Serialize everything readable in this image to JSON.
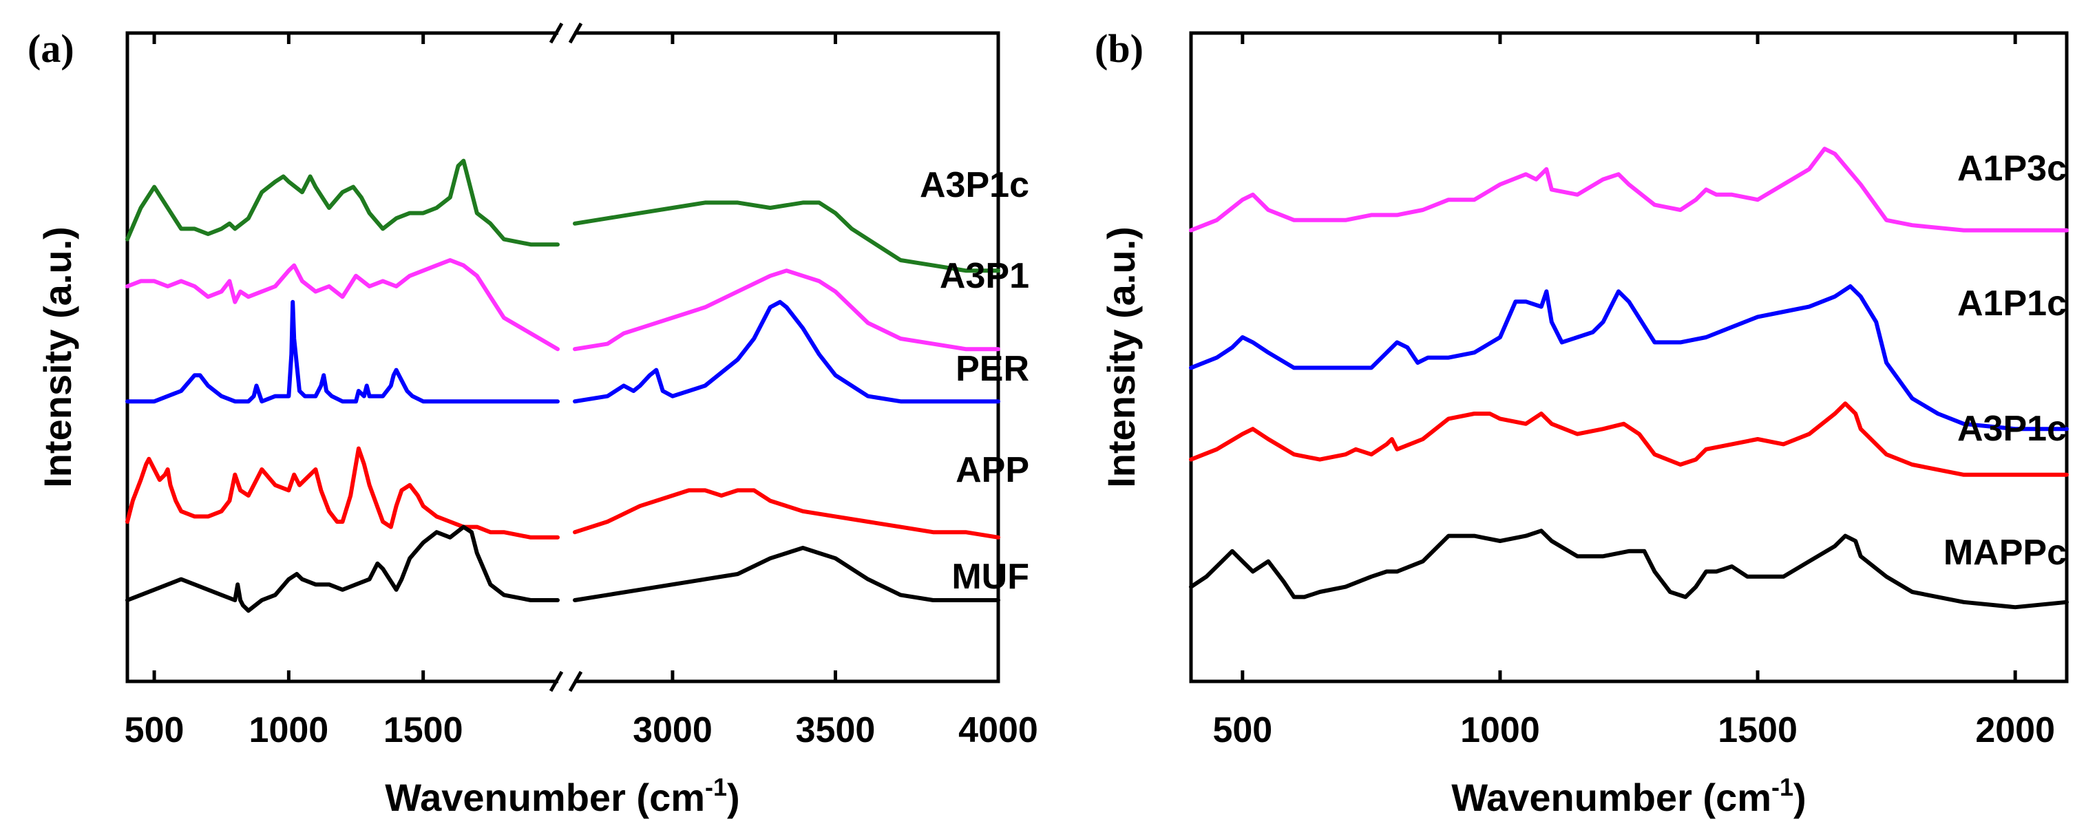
{
  "chart_data": [
    {
      "type": "line",
      "panel": "(a)",
      "xlabel": "Wavenumber (cm",
      "xlabel_sup": "-1",
      "xlabel_end": ")",
      "ylabel": "Intensity (a.u.)",
      "x_break": [
        2000,
        2700
      ],
      "xlim": [
        400,
        4000
      ],
      "xticks": [
        "500",
        "1000",
        "1500",
        "3000",
        "3500",
        "4000"
      ],
      "xtick_values": [
        500,
        1000,
        1500,
        3000,
        3500,
        4000
      ],
      "ylim": [
        0,
        100
      ],
      "series": [
        {
          "name": "A3P1c",
          "color": "#1f7a1f",
          "x": [
            400,
            450,
            500,
            550,
            600,
            650,
            700,
            750,
            780,
            800,
            850,
            900,
            950,
            980,
            1000,
            1050,
            1080,
            1100,
            1150,
            1200,
            1240,
            1270,
            1300,
            1350,
            1400,
            1450,
            1500,
            1550,
            1600,
            1630,
            1650,
            1680,
            1700,
            1750,
            1800,
            1900,
            2000,
            2700,
            2800,
            2900,
            3000,
            3100,
            3200,
            3300,
            3400,
            3450,
            3500,
            3550,
            3600,
            3650,
            3700,
            3800,
            3900,
            4000
          ],
          "y": [
            74,
            80,
            84,
            80,
            76,
            76,
            75,
            76,
            77,
            76,
            78,
            83,
            85,
            86,
            85,
            83,
            86,
            84,
            80,
            83,
            84,
            82,
            79,
            76,
            78,
            79,
            79,
            80,
            82,
            88,
            89,
            83,
            79,
            77,
            74,
            73,
            73,
            77,
            78,
            79,
            80,
            81,
            81,
            80,
            81,
            81,
            79,
            76,
            74,
            72,
            70,
            69,
            68,
            68
          ]
        },
        {
          "name": "A3P1",
          "color": "#ff33ff",
          "x": [
            400,
            450,
            500,
            550,
            600,
            650,
            700,
            750,
            780,
            800,
            820,
            850,
            900,
            950,
            1000,
            1020,
            1050,
            1100,
            1150,
            1200,
            1250,
            1300,
            1350,
            1400,
            1450,
            1500,
            1550,
            1600,
            1650,
            1700,
            1750,
            1800,
            1900,
            2000,
            2700,
            2800,
            2850,
            2900,
            2950,
            3000,
            3100,
            3200,
            3300,
            3350,
            3400,
            3450,
            3500,
            3550,
            3600,
            3700,
            3800,
            3900,
            4000
          ],
          "y": [
            65,
            66,
            66,
            65,
            66,
            65,
            63,
            64,
            66,
            62,
            64,
            63,
            64,
            65,
            68,
            69,
            66,
            64,
            65,
            63,
            67,
            65,
            66,
            65,
            67,
            68,
            69,
            70,
            69,
            67,
            63,
            59,
            56,
            53,
            53,
            54,
            56,
            57,
            58,
            59,
            61,
            64,
            67,
            68,
            67,
            66,
            64,
            61,
            58,
            55,
            54,
            53,
            53
          ]
        },
        {
          "name": "PER",
          "color": "#0000ff",
          "x": [
            400,
            500,
            550,
            600,
            650,
            670,
            700,
            750,
            800,
            850,
            870,
            880,
            900,
            950,
            1000,
            1010,
            1015,
            1020,
            1040,
            1060,
            1100,
            1120,
            1130,
            1140,
            1160,
            1200,
            1250,
            1260,
            1280,
            1290,
            1300,
            1350,
            1380,
            1390,
            1400,
            1410,
            1420,
            1440,
            1460,
            1500,
            1600,
            2000,
            2700,
            2800,
            2850,
            2880,
            2900,
            2930,
            2950,
            2970,
            3000,
            3100,
            3200,
            3250,
            3300,
            3330,
            3350,
            3400,
            3450,
            3500,
            3600,
            3700,
            3800,
            3900,
            4000
          ],
          "y": [
            43,
            43,
            44,
            45,
            48,
            48,
            46,
            44,
            43,
            43,
            44,
            46,
            43,
            44,
            44,
            52,
            62,
            55,
            45,
            44,
            44,
            46,
            48,
            45,
            44,
            43,
            43,
            45,
            44,
            46,
            44,
            44,
            46,
            48,
            49,
            48,
            47,
            45,
            44,
            43,
            43,
            43,
            43,
            44,
            46,
            45,
            46,
            48,
            49,
            45,
            44,
            46,
            51,
            55,
            61,
            62,
            61,
            57,
            52,
            48,
            44,
            43,
            43,
            43,
            43
          ]
        },
        {
          "name": "APP",
          "color": "#ff0000",
          "x": [
            400,
            420,
            450,
            470,
            480,
            500,
            520,
            540,
            550,
            560,
            580,
            600,
            650,
            700,
            750,
            780,
            800,
            820,
            850,
            880,
            900,
            950,
            1000,
            1020,
            1040,
            1060,
            1100,
            1120,
            1150,
            1180,
            1200,
            1230,
            1250,
            1260,
            1280,
            1300,
            1350,
            1380,
            1400,
            1420,
            1450,
            1480,
            1500,
            1550,
            1600,
            1650,
            1700,
            1750,
            1800,
            1900,
            2000,
            2700,
            2800,
            2900,
            3000,
            3050,
            3100,
            3150,
            3200,
            3250,
            3300,
            3400,
            3500,
            3600,
            3700,
            3800,
            3900,
            4000
          ],
          "y": [
            20,
            24,
            28,
            31,
            32,
            30,
            28,
            29,
            30,
            27,
            24,
            22,
            21,
            21,
            22,
            24,
            29,
            26,
            25,
            28,
            30,
            27,
            26,
            29,
            27,
            28,
            30,
            26,
            22,
            20,
            20,
            25,
            31,
            34,
            31,
            27,
            20,
            19,
            23,
            26,
            27,
            25,
            23,
            21,
            20,
            19,
            19,
            18,
            18,
            17,
            17,
            18,
            20,
            23,
            25,
            26,
            26,
            25,
            26,
            26,
            24,
            22,
            21,
            20,
            19,
            18,
            18,
            17
          ]
        },
        {
          "name": "MUF",
          "color": "#000000",
          "x": [
            400,
            450,
            500,
            550,
            600,
            650,
            700,
            750,
            800,
            810,
            820,
            830,
            850,
            900,
            950,
            1000,
            1030,
            1050,
            1100,
            1150,
            1200,
            1250,
            1300,
            1330,
            1350,
            1400,
            1420,
            1450,
            1500,
            1550,
            1600,
            1650,
            1680,
            1700,
            1750,
            1800,
            1900,
            2000,
            2700,
            2800,
            2900,
            3000,
            3100,
            3200,
            3300,
            3350,
            3400,
            3450,
            3500,
            3550,
            3600,
            3700,
            3800,
            3900,
            4000
          ],
          "y": [
            5,
            6,
            7,
            8,
            9,
            8,
            7,
            6,
            5,
            8,
            5,
            4,
            3,
            5,
            6,
            9,
            10,
            9,
            8,
            8,
            7,
            8,
            9,
            12,
            11,
            7,
            9,
            13,
            16,
            18,
            17,
            19,
            18,
            14,
            8,
            6,
            5,
            5,
            5,
            6,
            7,
            8,
            9,
            10,
            13,
            14,
            15,
            14,
            13,
            11,
            9,
            6,
            5,
            5,
            5
          ]
        }
      ]
    },
    {
      "type": "line",
      "panel": "(b)",
      "xlabel": "Wavenumber (cm",
      "xlabel_sup": "-1",
      "xlabel_end": ")",
      "ylabel": "Intensity (a.u.)",
      "xlim": [
        400,
        2100
      ],
      "xticks": [
        "500",
        "1000",
        "1500",
        "2000"
      ],
      "xtick_values": [
        500,
        1000,
        1500,
        2000
      ],
      "ylim": [
        0,
        100
      ],
      "series": [
        {
          "name": "A1P3c",
          "color": "#ff33ff",
          "x": [
            400,
            450,
            500,
            520,
            550,
            600,
            650,
            700,
            750,
            800,
            850,
            900,
            950,
            1000,
            1050,
            1070,
            1090,
            1100,
            1150,
            1200,
            1230,
            1250,
            1300,
            1350,
            1380,
            1400,
            1420,
            1450,
            1500,
            1550,
            1600,
            1630,
            1650,
            1700,
            1750,
            1800,
            1900,
            2000,
            2100
          ],
          "y": [
            71,
            73,
            77,
            78,
            75,
            73,
            73,
            73,
            74,
            74,
            75,
            77,
            77,
            80,
            82,
            81,
            83,
            79,
            78,
            81,
            82,
            80,
            76,
            75,
            77,
            79,
            78,
            78,
            77,
            80,
            83,
            87,
            86,
            80,
            73,
            72,
            71,
            71,
            71
          ]
        },
        {
          "name": "A1P1c",
          "color": "#0000ff",
          "x": [
            400,
            450,
            480,
            500,
            520,
            550,
            600,
            650,
            700,
            750,
            780,
            800,
            820,
            840,
            860,
            900,
            950,
            1000,
            1030,
            1050,
            1080,
            1090,
            1100,
            1120,
            1150,
            1180,
            1200,
            1230,
            1250,
            1300,
            1350,
            1400,
            1450,
            1500,
            1550,
            1600,
            1650,
            1680,
            1700,
            1730,
            1750,
            1800,
            1850,
            1900,
            2000,
            2100
          ],
          "y": [
            44,
            46,
            48,
            50,
            49,
            47,
            44,
            44,
            44,
            44,
            47,
            49,
            48,
            45,
            46,
            46,
            47,
            50,
            57,
            57,
            56,
            59,
            53,
            49,
            50,
            51,
            53,
            59,
            57,
            49,
            49,
            50,
            52,
            54,
            55,
            56,
            58,
            60,
            58,
            53,
            45,
            38,
            35,
            33,
            32,
            32
          ]
        },
        {
          "name": "A3P1c",
          "color": "#ff0000",
          "x": [
            400,
            450,
            500,
            520,
            550,
            600,
            650,
            700,
            720,
            750,
            780,
            790,
            800,
            850,
            900,
            950,
            980,
            1000,
            1050,
            1080,
            1100,
            1150,
            1200,
            1240,
            1270,
            1300,
            1350,
            1380,
            1400,
            1450,
            1500,
            1550,
            1600,
            1650,
            1670,
            1690,
            1700,
            1750,
            1800,
            1900,
            2000,
            2100
          ],
          "y": [
            26,
            28,
            31,
            32,
            30,
            27,
            26,
            27,
            28,
            27,
            29,
            30,
            28,
            30,
            34,
            35,
            35,
            34,
            33,
            35,
            33,
            31,
            32,
            33,
            31,
            27,
            25,
            26,
            28,
            29,
            30,
            29,
            31,
            35,
            37,
            35,
            32,
            27,
            25,
            23,
            23,
            23
          ]
        },
        {
          "name": "MAPPc",
          "color": "#000000",
          "x": [
            400,
            430,
            460,
            480,
            500,
            520,
            550,
            580,
            600,
            620,
            650,
            700,
            750,
            780,
            800,
            850,
            900,
            950,
            1000,
            1050,
            1080,
            1100,
            1150,
            1200,
            1250,
            1280,
            1300,
            1330,
            1360,
            1380,
            1400,
            1420,
            1450,
            1480,
            1500,
            1550,
            1600,
            1650,
            1670,
            1690,
            1700,
            1750,
            1800,
            1900,
            2000,
            2100
          ],
          "y": [
            1,
            3,
            6,
            8,
            6,
            4,
            6,
            2,
            -1,
            -1,
            0,
            1,
            3,
            4,
            4,
            6,
            11,
            11,
            10,
            11,
            12,
            10,
            7,
            7,
            8,
            8,
            4,
            0,
            -1,
            1,
            4,
            4,
            5,
            3,
            3,
            3,
            6,
            9,
            11,
            10,
            7,
            3,
            0,
            -2,
            -3,
            -2
          ]
        }
      ]
    }
  ]
}
